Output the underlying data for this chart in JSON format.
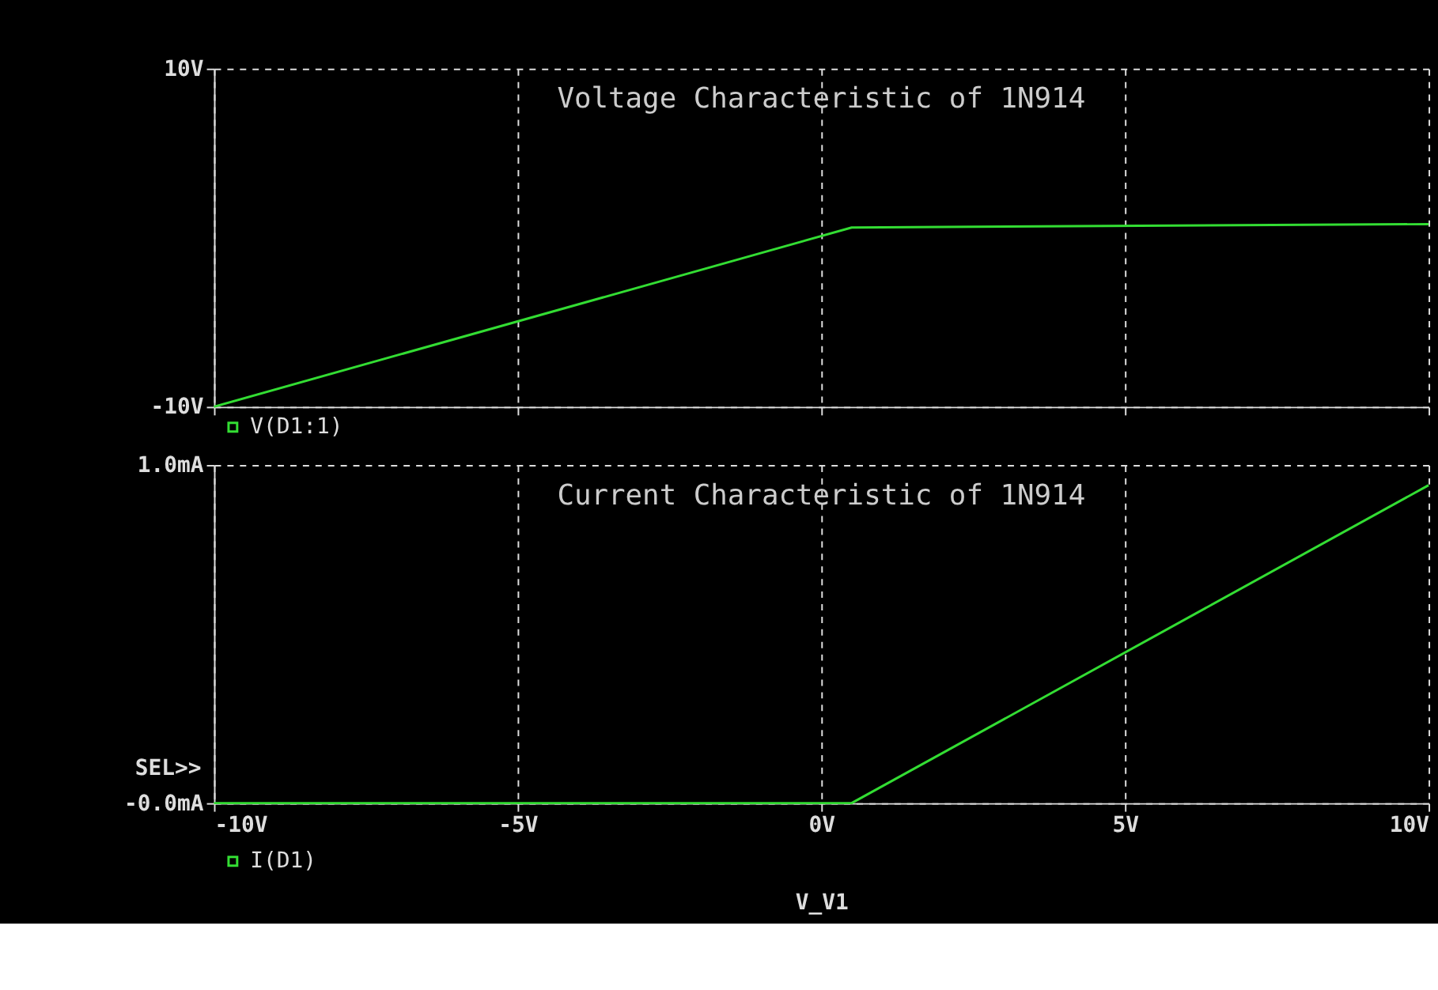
{
  "chart_data": [
    {
      "type": "line",
      "title": "Voltage Characteristic of 1N914",
      "xlim": [
        -10,
        10
      ],
      "xticks": [
        -10,
        -5,
        0,
        5,
        10
      ],
      "ylim": [
        -10,
        10
      ],
      "yticks": [
        {
          "value": -10,
          "label": "-10V"
        },
        {
          "value": 10,
          "label": "10V"
        }
      ],
      "grid": true,
      "tick_labels": "y",
      "legend": "bottom left",
      "series": [
        {
          "name": "V(D1:1)",
          "color": "#33dd33",
          "x": [
            -10,
            0.5,
            10
          ],
          "values": [
            -10,
            0.6,
            0.8
          ]
        }
      ]
    },
    {
      "type": "line",
      "title": "Current Characteristic of 1N914",
      "xlabel": "V_V1",
      "xlim": [
        -10,
        10
      ],
      "xticks": [
        {
          "value": -10,
          "label": "-10V"
        },
        {
          "value": -5,
          "label": "-5V"
        },
        {
          "value": 0,
          "label": "0V"
        },
        {
          "value": 5,
          "label": "5V"
        },
        {
          "value": 10,
          "label": "10V"
        }
      ],
      "ylim": [
        0,
        1
      ],
      "yticks": [
        {
          "value": 0,
          "label": "-0.0mA"
        },
        {
          "value": 1,
          "label": "1.0mA"
        }
      ],
      "grid": true,
      "legend": "bottom left",
      "annotations": [
        "SEL>>"
      ],
      "series": [
        {
          "name": "I(D1)",
          "color": "#33dd33",
          "x": [
            -10,
            0.5,
            10
          ],
          "values": [
            0,
            0,
            0.94
          ]
        }
      ]
    }
  ]
}
